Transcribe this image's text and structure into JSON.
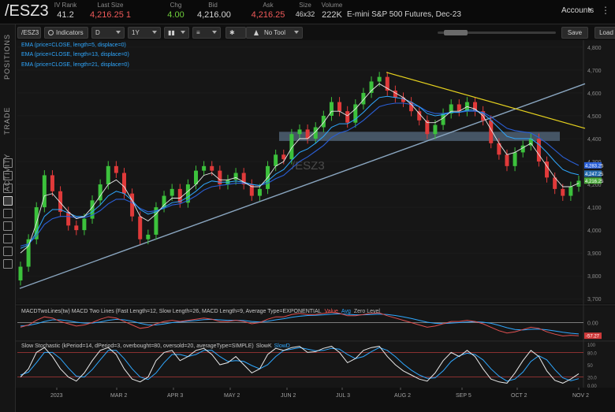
{
  "header": {
    "symbol": "/ESZ3",
    "iv_rank_label": "IV Rank",
    "iv_rank": "41.2",
    "last_size_label": "Last Size",
    "last_size": "4,216.25 1",
    "chg_label": "Chg",
    "chg": "4.00",
    "bid_label": "Bid",
    "bid": "4,216.00",
    "ask_label": "Ask",
    "ask": "4,216.25",
    "size_label": "Size",
    "size": "46x32",
    "volume_label": "Volume",
    "volume": "222K",
    "contract_desc": "E-mini S&P 500 Futures, Dec-23",
    "accounts": "Accounts"
  },
  "sidebar": {
    "tabs": [
      "POSITIONS",
      "TRADE",
      "ACTIVITY"
    ]
  },
  "toolbar": {
    "symbol": "/ESZ3",
    "indicators": "Indicators",
    "period": "D",
    "range": "1Y",
    "tool": "No Tool",
    "save": "Save",
    "load": "Load"
  },
  "studies": {
    "ema5": "EMA (price=CLOSE, length=5, displace=0)",
    "ema13": "EMA (price=CLOSE, length=13, displace=0)",
    "ema21": "EMA (price=CLOSE, length=21, displace=0)",
    "macd": "MACDTwoLines(tw) MACD Two Lines (Fast Length=12, Slow Length=26, MACD Length=9, Average Type=EXPONENTIAL",
    "macd_value": "Value",
    "macd_avg": "Avg",
    "macd_zero": "Zero Level",
    "stoch": "Slow Stochastic (kPeriod=14, dPeriod=3, overbought=80, oversold=20, averageType=SIMPLE)",
    "stoch_k": "SlowK",
    "stoch_d": "SlowD"
  },
  "chart_data": {
    "type": "candlestick",
    "watermark": "/ESZ3",
    "y_ticks": [
      3700,
      3800,
      3900,
      4000,
      4100,
      4200,
      4300,
      4400,
      4500,
      4600,
      4700,
      4800
    ],
    "ylim": [
      3680,
      4810
    ],
    "x_labels": [
      "2023",
      "MAR 2",
      "APR 3",
      "MAY 2",
      "JUN 2",
      "JUL 3",
      "AUG 2",
      "SEP 5",
      "OCT 2",
      "NOV 2"
    ],
    "price_badges": [
      {
        "value": "4,283.25",
        "color": "#2a5fd6"
      },
      {
        "value": "4,247.25",
        "color": "#2a6fb0"
      },
      {
        "value": "4,216.25",
        "color": "#4aa83a"
      }
    ],
    "closes": [
      3840,
      3960,
      4100,
      4240,
      4170,
      4080,
      4020,
      4000,
      4050,
      4130,
      4200,
      4280,
      4250,
      4160,
      4060,
      3960,
      3980,
      4100,
      4150,
      4180,
      4120,
      4200,
      4260,
      4280,
      4260,
      4200,
      4220,
      4250,
      4200,
      4150,
      4180,
      4280,
      4330,
      4310,
      4420,
      4440,
      4400,
      4450,
      4500,
      4560,
      4520,
      4470,
      4550,
      4600,
      4650,
      4670,
      4610,
      4580,
      4560,
      4520,
      4480,
      4420,
      4460,
      4510,
      4550,
      4520,
      4560,
      4520,
      4480,
      4380,
      4330,
      4280,
      4340,
      4370,
      4400,
      4300,
      4230,
      4180,
      4150,
      4190,
      4216
    ],
    "ema5": [
      3900,
      3930,
      4030,
      4150,
      4160,
      4120,
      4080,
      4050,
      4060,
      4100,
      4150,
      4200,
      4220,
      4190,
      4130,
      4060,
      4040,
      4070,
      4110,
      4140,
      4140,
      4170,
      4200,
      4240,
      4250,
      4220,
      4220,
      4230,
      4210,
      4190,
      4190,
      4230,
      4280,
      4300,
      4360,
      4400,
      4400,
      4430,
      4470,
      4520,
      4520,
      4500,
      4530,
      4570,
      4610,
      4640,
      4620,
      4600,
      4580,
      4550,
      4510,
      4470,
      4470,
      4490,
      4520,
      4520,
      4540,
      4530,
      4500,
      4440,
      4380,
      4330,
      4340,
      4360,
      4380,
      4330,
      4280,
      4230,
      4190,
      4190,
      4205
    ],
    "ema13": [
      3920,
      3935,
      3990,
      4060,
      4090,
      4090,
      4075,
      4060,
      4060,
      4080,
      4110,
      4150,
      4170,
      4160,
      4130,
      4090,
      4070,
      4080,
      4100,
      4120,
      4125,
      4145,
      4170,
      4200,
      4215,
      4210,
      4210,
      4215,
      4210,
      4200,
      4195,
      4215,
      4245,
      4265,
      4305,
      4340,
      4355,
      4380,
      4410,
      4450,
      4465,
      4465,
      4485,
      4515,
      4550,
      4580,
      4585,
      4580,
      4575,
      4560,
      4540,
      4510,
      4500,
      4505,
      4515,
      4515,
      4525,
      4525,
      4510,
      4480,
      4445,
      4410,
      4400,
      4400,
      4400,
      4375,
      4340,
      4300,
      4265,
      4250,
      4242
    ],
    "ema21": [
      3930,
      3940,
      3975,
      4025,
      4050,
      4060,
      4060,
      4055,
      4055,
      4065,
      4085,
      4115,
      4135,
      4135,
      4120,
      4095,
      4080,
      4085,
      4095,
      4110,
      4115,
      4130,
      4150,
      4175,
      4190,
      4195,
      4200,
      4205,
      4205,
      4200,
      4195,
      4205,
      4225,
      4240,
      4270,
      4300,
      4320,
      4345,
      4370,
      4405,
      4425,
      4435,
      4455,
      4480,
      4510,
      4540,
      4550,
      4555,
      4555,
      4550,
      4540,
      4520,
      4510,
      4510,
      4515,
      4515,
      4520,
      4520,
      4515,
      4495,
      4470,
      4445,
      4435,
      4430,
      4425,
      4405,
      4380,
      4350,
      4320,
      4300,
      4283
    ],
    "trendline_support": {
      "start_value": 3745,
      "end_value": 4640
    },
    "trendline_resistance": {
      "start_value": 4690,
      "end_value": 4445
    },
    "resistance_zone": [
      4390,
      4430
    ],
    "macd": {
      "ylim": [
        -70,
        60
      ],
      "ticks": [
        "0.00",
        "-57.27"
      ],
      "value": [
        -20,
        -10,
        10,
        25,
        20,
        5,
        -5,
        -15,
        -10,
        0,
        15,
        25,
        20,
        5,
        -10,
        -25,
        -20,
        -5,
        5,
        10,
        5,
        10,
        15,
        20,
        15,
        5,
        5,
        10,
        5,
        -5,
        0,
        15,
        25,
        25,
        35,
        40,
        35,
        35,
        40,
        45,
        40,
        30,
        30,
        35,
        40,
        42,
        30,
        20,
        10,
        0,
        -10,
        -20,
        -15,
        -5,
        5,
        5,
        10,
        5,
        -5,
        -20,
        -35,
        -45,
        -40,
        -30,
        -20,
        -25,
        -40,
        -50,
        -58,
        -55,
        -57
      ],
      "avg": [
        -15,
        -12,
        -5,
        5,
        12,
        12,
        8,
        2,
        -2,
        -2,
        3,
        10,
        14,
        12,
        6,
        -3,
        -10,
        -10,
        -6,
        0,
        3,
        6,
        9,
        13,
        14,
        12,
        10,
        10,
        9,
        5,
        3,
        6,
        12,
        17,
        23,
        28,
        31,
        32,
        34,
        37,
        38,
        36,
        34,
        34,
        35,
        37,
        35,
        31,
        25,
        18,
        10,
        2,
        -3,
        -4,
        -2,
        0,
        3,
        4,
        2,
        -3,
        -12,
        -22,
        -30,
        -32,
        -29,
        -28,
        -31,
        -36,
        -42,
        -46,
        -49
      ]
    },
    "stochastic": {
      "ylim": [
        0,
        100
      ],
      "ticks": [
        "100",
        "80.0",
        "50",
        "20.0",
        "0.00"
      ],
      "overbought": 80,
      "oversold": 20,
      "slowk": [
        20,
        40,
        80,
        92,
        70,
        40,
        20,
        10,
        30,
        60,
        85,
        92,
        75,
        40,
        15,
        8,
        20,
        60,
        80,
        85,
        60,
        70,
        85,
        90,
        75,
        50,
        55,
        70,
        50,
        30,
        40,
        75,
        90,
        85,
        92,
        95,
        80,
        82,
        90,
        95,
        80,
        55,
        65,
        85,
        92,
        95,
        70,
        50,
        35,
        25,
        15,
        10,
        30,
        60,
        80,
        70,
        85,
        70,
        40,
        15,
        8,
        5,
        30,
        60,
        85,
        70,
        35,
        12,
        5,
        15,
        28
      ],
      "slowd": [
        25,
        32,
        55,
        80,
        80,
        65,
        42,
        22,
        20,
        38,
        62,
        85,
        85,
        65,
        40,
        20,
        14,
        30,
        55,
        75,
        75,
        70,
        75,
        85,
        85,
        70,
        58,
        60,
        58,
        48,
        40,
        50,
        70,
        85,
        88,
        92,
        88,
        84,
        85,
        90,
        88,
        75,
        65,
        70,
        82,
        92,
        85,
        70,
        52,
        37,
        25,
        17,
        18,
        35,
        58,
        72,
        78,
        75,
        62,
        40,
        22,
        10,
        15,
        32,
        58,
        72,
        62,
        38,
        18,
        11,
        16
      ]
    }
  }
}
